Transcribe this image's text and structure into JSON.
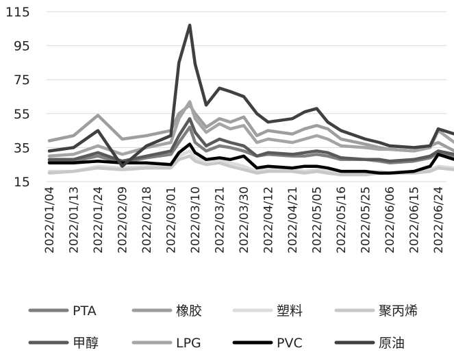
{
  "chart_data": {
    "type": "line",
    "title": "",
    "xlabel": "",
    "ylabel": "",
    "ylim": [
      15,
      115
    ],
    "yticks": [
      15,
      35,
      55,
      75,
      95,
      115
    ],
    "grid": "horizontal",
    "legend_position": "bottom",
    "x_tick_labels": [
      "2022/01/04",
      "2022/01/13",
      "2022/01/24",
      "2022/02/09",
      "2022/02/18",
      "2022/03/01",
      "2022/03/10",
      "2022/03/21",
      "2022/03/30",
      "2022/04/12",
      "2022/04/21",
      "2022/05/05",
      "2022/05/16",
      "2022/05/25",
      "2022/06/06",
      "2022/06/15",
      "2022/06/24"
    ],
    "x": [
      "2022/01/04",
      "2022/01/13",
      "2022/01/24",
      "2022/02/09",
      "2022/02/18",
      "2022/03/01",
      "2022/03/04",
      "2022/03/08",
      "2022/03/10",
      "2022/03/15",
      "2022/03/21",
      "2022/03/25",
      "2022/03/30",
      "2022/04/06",
      "2022/04/12",
      "2022/04/21",
      "2022/04/28",
      "2022/05/05",
      "2022/05/10",
      "2022/05/16",
      "2022/05/25",
      "2022/06/01",
      "2022/06/06",
      "2022/06/15",
      "2022/06/21",
      "2022/06/24",
      "2022/06/30"
    ],
    "series": [
      {
        "name": "PTA",
        "color": "#7f7f7f",
        "values": [
          27,
          27,
          30,
          26,
          29,
          31,
          38,
          47,
          38,
          33,
          36,
          35,
          33,
          30,
          31,
          30,
          30,
          31,
          30,
          28,
          28,
          27,
          26,
          27,
          29,
          32,
          30
        ]
      },
      {
        "name": "橡胶",
        "color": "#9e9e9e",
        "values": [
          39,
          42,
          54,
          40,
          42,
          45,
          55,
          60,
          55,
          47,
          52,
          50,
          53,
          42,
          45,
          43,
          46,
          48,
          46,
          40,
          37,
          35,
          34,
          33,
          36,
          38,
          33
        ]
      },
      {
        "name": "塑料",
        "color": "#dcdcdc",
        "values": [
          21,
          21,
          24,
          23,
          24,
          25,
          30,
          33,
          29,
          27,
          28,
          26,
          24,
          21,
          22,
          22,
          21,
          22,
          21,
          21,
          20,
          21,
          20,
          21,
          22,
          24,
          23
        ]
      },
      {
        "name": "聚丙烯",
        "color": "#c8c8c8",
        "values": [
          20,
          21,
          23,
          22,
          23,
          23,
          28,
          30,
          27,
          25,
          26,
          24,
          22,
          20,
          21,
          21,
          20,
          21,
          20,
          19,
          19,
          20,
          20,
          20,
          21,
          23,
          22
        ]
      },
      {
        "name": "甲醇",
        "color": "#5a5a5a",
        "values": [
          28,
          28,
          32,
          27,
          30,
          33,
          42,
          52,
          44,
          36,
          40,
          38,
          36,
          30,
          32,
          31,
          32,
          33,
          32,
          29,
          28,
          28,
          27,
          28,
          30,
          33,
          31
        ]
      },
      {
        "name": "LPG",
        "color": "#a5a5a5",
        "values": [
          30,
          31,
          36,
          31,
          35,
          38,
          52,
          62,
          52,
          44,
          49,
          46,
          48,
          38,
          40,
          38,
          40,
          42,
          40,
          36,
          35,
          34,
          34,
          33,
          35,
          45,
          38
        ]
      },
      {
        "name": "PVC",
        "color": "#000000",
        "values": [
          26,
          26,
          27,
          26,
          26,
          25,
          32,
          37,
          32,
          28,
          29,
          28,
          30,
          23,
          24,
          23,
          24,
          24,
          23,
          21,
          21,
          20,
          20,
          21,
          24,
          31,
          28
        ]
      },
      {
        "name": "原油",
        "color": "#404040",
        "values": [
          33,
          35,
          45,
          24,
          36,
          42,
          85,
          107,
          84,
          60,
          70,
          68,
          65,
          55,
          50,
          52,
          56,
          58,
          50,
          45,
          40,
          38,
          36,
          35,
          36,
          46,
          43
        ]
      }
    ]
  }
}
